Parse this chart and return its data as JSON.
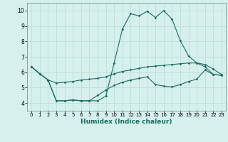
{
  "xlabel": "Humidex (Indice chaleur)",
  "background_color": "#d6f0ee",
  "grid_color": "#c0ddd8",
  "line_color": "#1a6b5e",
  "xlim": [
    -0.5,
    23.5
  ],
  "ylim": [
    3.5,
    10.5
  ],
  "xticks": [
    0,
    1,
    2,
    3,
    4,
    5,
    6,
    7,
    8,
    9,
    10,
    11,
    12,
    13,
    14,
    15,
    16,
    17,
    18,
    19,
    20,
    21,
    22,
    23
  ],
  "yticks": [
    4,
    5,
    6,
    7,
    8,
    9,
    10
  ],
  "line1_x": [
    0,
    1,
    2,
    3,
    4,
    5,
    6,
    7,
    8,
    9,
    10,
    11,
    12,
    13,
    14,
    15,
    16,
    17,
    18,
    19,
    20,
    21,
    22,
    23
  ],
  "line1_y": [
    6.35,
    5.9,
    5.5,
    4.15,
    4.15,
    4.2,
    4.15,
    4.15,
    4.15,
    4.45,
    6.6,
    8.8,
    9.8,
    9.65,
    9.95,
    9.55,
    10.0,
    9.45,
    8.05,
    7.05,
    6.6,
    6.35,
    5.85,
    5.8
  ],
  "line2_x": [
    0,
    1,
    2,
    3,
    4,
    5,
    6,
    7,
    8,
    9,
    10,
    11,
    12,
    13,
    14,
    15,
    16,
    17,
    18,
    19,
    20,
    21,
    22,
    23
  ],
  "line2_y": [
    6.35,
    5.9,
    5.5,
    5.3,
    5.35,
    5.4,
    5.5,
    5.55,
    5.6,
    5.7,
    5.9,
    6.05,
    6.15,
    6.25,
    6.35,
    6.4,
    6.45,
    6.5,
    6.55,
    6.6,
    6.6,
    6.5,
    6.2,
    5.85
  ],
  "line3_x": [
    0,
    1,
    2,
    3,
    4,
    5,
    6,
    7,
    8,
    9,
    10,
    11,
    12,
    13,
    14,
    15,
    16,
    17,
    18,
    19,
    20,
    21,
    22,
    23
  ],
  "line3_y": [
    6.35,
    5.9,
    5.5,
    4.15,
    4.15,
    4.2,
    4.15,
    4.15,
    4.5,
    4.85,
    5.15,
    5.35,
    5.5,
    5.6,
    5.7,
    5.2,
    5.1,
    5.05,
    5.2,
    5.4,
    5.55,
    6.15,
    5.85,
    5.8
  ]
}
